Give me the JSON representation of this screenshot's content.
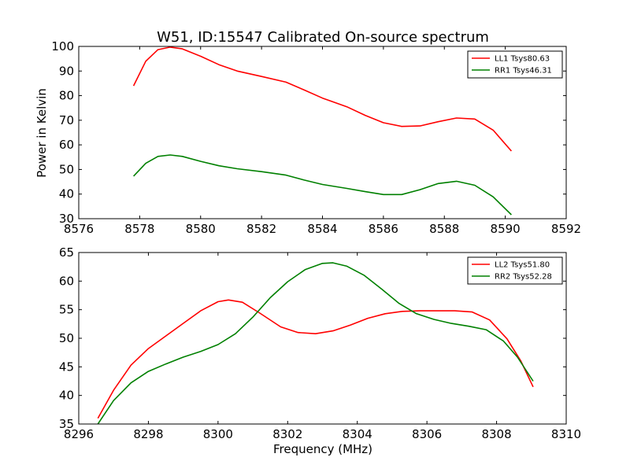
{
  "colors": {
    "ll": "#ff0000",
    "rr": "#008000",
    "axes": "#000000",
    "background": "#ffffff"
  },
  "chart_data": [
    {
      "type": "line",
      "title": "W51, ID:15547 Calibrated On-source spectrum",
      "xlabel": "",
      "ylabel": "Power in Kelvin",
      "xlim": [
        8576,
        8592
      ],
      "ylim": [
        30,
        100
      ],
      "xticks": [
        8576,
        8578,
        8580,
        8582,
        8584,
        8586,
        8588,
        8590,
        8592
      ],
      "yticks": [
        30,
        40,
        50,
        60,
        70,
        80,
        90,
        100
      ],
      "legend_position": "top-right",
      "series": [
        {
          "name": "LL1 Tsys80.63",
          "color": "#ff0000",
          "x": [
            8577.8,
            8578.2,
            8578.6,
            8579.0,
            8579.4,
            8580.0,
            8580.6,
            8581.2,
            8582.0,
            8582.8,
            8583.4,
            8584.0,
            8584.8,
            8585.4,
            8586.0,
            8586.6,
            8587.2,
            8587.8,
            8588.4,
            8589.0,
            8589.6,
            8590.2
          ],
          "y": [
            84,
            94,
            98.7,
            99.7,
            99,
            96,
            92.6,
            90,
            87.8,
            85.5,
            82.3,
            79,
            75.5,
            72,
            69,
            67.5,
            67.7,
            69.4,
            70.9,
            70.5,
            66,
            57.5
          ]
        },
        {
          "name": "RR1 Tsys46.31",
          "color": "#008000",
          "x": [
            8577.8,
            8578.2,
            8578.6,
            8579.0,
            8579.4,
            8580.0,
            8580.6,
            8581.2,
            8582.0,
            8582.8,
            8583.4,
            8584.0,
            8584.8,
            8585.4,
            8586.0,
            8586.6,
            8587.2,
            8587.8,
            8588.4,
            8589.0,
            8589.6,
            8590.2
          ],
          "y": [
            47.3,
            52.5,
            55.3,
            55.9,
            55.3,
            53.3,
            51.5,
            50.3,
            49.1,
            47.7,
            45.7,
            43.9,
            42.3,
            41,
            39.8,
            39.8,
            41.8,
            44.3,
            45.2,
            43.6,
            38.9,
            31.6
          ]
        }
      ]
    },
    {
      "type": "line",
      "title": "",
      "xlabel": "Frequency (MHz)",
      "ylabel": "",
      "xlim": [
        8296,
        8310
      ],
      "ylim": [
        35,
        65
      ],
      "xticks": [
        8296,
        8298,
        8300,
        8302,
        8304,
        8306,
        8308,
        8310
      ],
      "yticks": [
        35,
        40,
        45,
        50,
        55,
        60,
        65
      ],
      "legend_position": "top-right",
      "series": [
        {
          "name": "LL2 Tsys51.80",
          "color": "#ff0000",
          "x": [
            8296.55,
            8297.0,
            8297.5,
            8298.0,
            8298.5,
            8299.0,
            8299.5,
            8300.0,
            8300.3,
            8300.7,
            8301.2,
            8301.8,
            8302.3,
            8302.8,
            8303.3,
            8303.8,
            8304.3,
            8304.8,
            8305.3,
            8305.8,
            8306.3,
            8306.8,
            8307.3,
            8307.8,
            8308.3,
            8308.7,
            8309.05
          ],
          "y": [
            36,
            40.9,
            45.3,
            48.2,
            50.4,
            52.6,
            54.8,
            56.4,
            56.7,
            56.3,
            54.4,
            52,
            51,
            50.8,
            51.3,
            52.3,
            53.5,
            54.3,
            54.7,
            54.8,
            54.8,
            54.8,
            54.6,
            53.2,
            49.9,
            46,
            41.5
          ]
        },
        {
          "name": "RR2 Tsys52.28",
          "color": "#008000",
          "x": [
            8296.55,
            8297.0,
            8297.5,
            8298.0,
            8298.5,
            8299.0,
            8299.5,
            8300.0,
            8300.5,
            8301.0,
            8301.5,
            8302.0,
            8302.5,
            8303.0,
            8303.3,
            8303.7,
            8304.2,
            8304.7,
            8305.2,
            8305.7,
            8306.2,
            8306.7,
            8307.2,
            8307.7,
            8308.2,
            8308.6,
            8309.05
          ],
          "y": [
            35,
            39.1,
            42.2,
            44.2,
            45.5,
            46.7,
            47.7,
            48.9,
            50.8,
            53.7,
            57.1,
            59.9,
            62,
            63.1,
            63.2,
            62.6,
            61,
            58.6,
            56.1,
            54.3,
            53.3,
            52.6,
            52.1,
            51.5,
            49.5,
            46.7,
            42.5
          ]
        }
      ]
    }
  ]
}
